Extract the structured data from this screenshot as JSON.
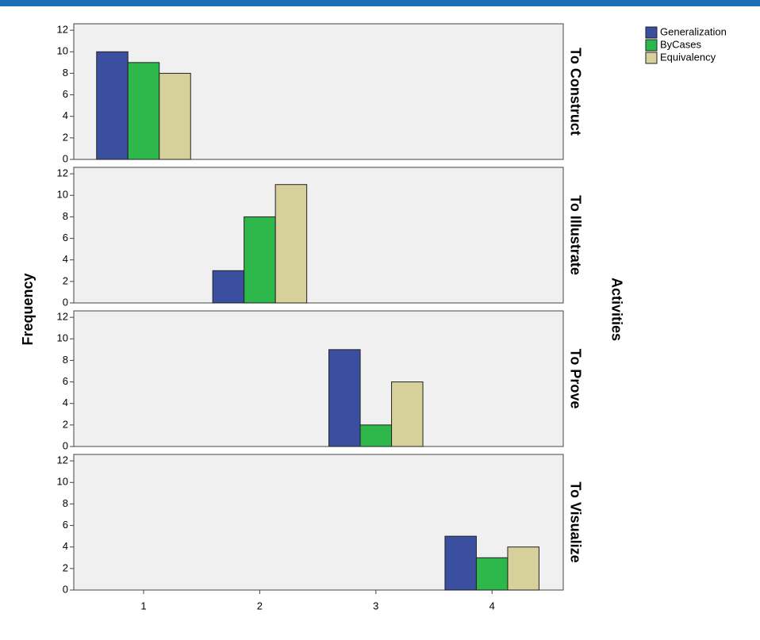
{
  "chart_data": {
    "type": "bar",
    "y_label": "Frequency",
    "facet_label": "Activities",
    "categories": [
      "1",
      "2",
      "3",
      "4"
    ],
    "series": [
      {
        "name": "Generalization",
        "color": "#3b4fa0"
      },
      {
        "name": "ByCases",
        "color": "#2eb84c"
      },
      {
        "name": "Equivalency",
        "color": "#d6d09a"
      }
    ],
    "panels": [
      {
        "label": "To Construct",
        "values": [
          [
            10,
            null,
            null,
            null
          ],
          [
            9,
            null,
            null,
            null
          ],
          [
            8,
            null,
            null,
            null
          ]
        ]
      },
      {
        "label": "To Illustrate",
        "values": [
          [
            null,
            3,
            null,
            null
          ],
          [
            null,
            8,
            null,
            null
          ],
          [
            null,
            11,
            null,
            null
          ]
        ]
      },
      {
        "label": "To Prove",
        "values": [
          [
            null,
            null,
            9,
            null
          ],
          [
            null,
            null,
            2,
            null
          ],
          [
            null,
            null,
            6,
            null
          ]
        ]
      },
      {
        "label": "To Visualize",
        "values": [
          [
            null,
            null,
            null,
            5
          ],
          [
            null,
            null,
            null,
            3
          ],
          [
            null,
            null,
            null,
            4
          ]
        ]
      }
    ],
    "ylim": [
      0,
      12.6
    ],
    "yticks": [
      0,
      2,
      4,
      6,
      8,
      10,
      12
    ],
    "legend": "top-right"
  }
}
